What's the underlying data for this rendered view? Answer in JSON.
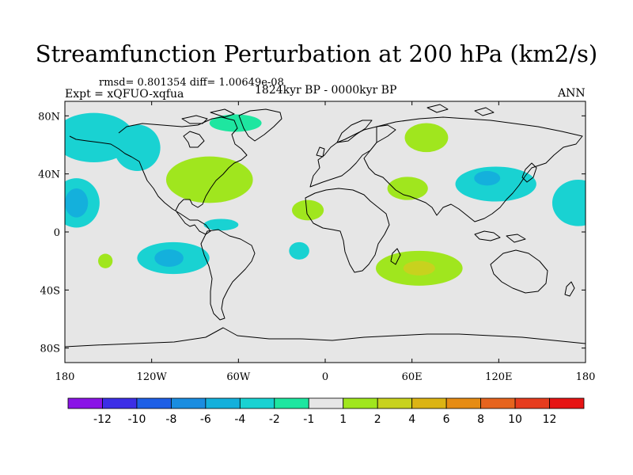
{
  "chart_data": {
    "type": "heatmap",
    "title": "Streamfunction Perturbation at 200 hPa (km2/s)",
    "stats_label": "rmsd= 0.801354 diff= 1.00649e-08",
    "left_label": "Expt = xQFUO-xqfua",
    "center_label": "1824kyr BP - 0000kyr BP",
    "right_label": "ANN",
    "x_axis": {
      "range": [
        -180,
        180
      ],
      "ticks": [
        -180,
        -120,
        -60,
        0,
        60,
        120,
        180
      ],
      "tick_labels": [
        "180",
        "120W",
        "60W",
        "0",
        "60E",
        "120E",
        "180"
      ]
    },
    "y_axis": {
      "range": [
        -90,
        90
      ],
      "ticks": [
        80,
        40,
        0,
        -40,
        -80
      ],
      "tick_labels": [
        "80N",
        "40N",
        "0",
        "40S",
        "80S"
      ]
    },
    "colorbar": {
      "labels": [
        "-12",
        "-10",
        "-8",
        "-6",
        "-4",
        "-2",
        "-1",
        "1",
        "2",
        "4",
        "6",
        "8",
        "10",
        "12"
      ],
      "colors": [
        "#8a14e6",
        "#3c2ee6",
        "#1e5fe6",
        "#1a8de0",
        "#14b0dc",
        "#19d2d2",
        "#1ee6a0",
        "#e6e6e6",
        "#a0e61e",
        "#c8d21e",
        "#dcb414",
        "#e68c14",
        "#e6641e",
        "#e63c1e",
        "#e61414"
      ]
    },
    "regions": [
      {
        "name": "north-pacific-negative",
        "lon": -160,
        "lat": 65,
        "rlon": 28,
        "rlat": 17,
        "level": "-2"
      },
      {
        "name": "north-pacific-arm",
        "lon": -130,
        "lat": 58,
        "rlon": 16,
        "rlat": 16,
        "level": "-2"
      },
      {
        "name": "east-pacific-negative",
        "lon": -172,
        "lat": 20,
        "rlon": 16,
        "rlat": 17,
        "level": "-2"
      },
      {
        "name": "east-pacific-core",
        "lon": -172,
        "lat": 20,
        "rlon": 8,
        "rlat": 10,
        "level": "-4"
      },
      {
        "name": "south-pacific-negative",
        "lon": -105,
        "lat": -18,
        "rlon": 25,
        "rlat": 11,
        "level": "-2"
      },
      {
        "name": "south-pacific-core",
        "lon": -108,
        "lat": -18,
        "rlon": 10,
        "rlat": 6,
        "level": "-4"
      },
      {
        "name": "south-pacific-small",
        "lon": -152,
        "lat": -20,
        "rlon": 5,
        "rlat": 5,
        "level": "1"
      },
      {
        "name": "north-america-positive",
        "lon": -80,
        "lat": 36,
        "rlon": 30,
        "rlat": 16,
        "level": "1"
      },
      {
        "name": "north-atlantic-high",
        "lon": -62,
        "lat": 75,
        "rlon": 18,
        "rlat": 6,
        "level": "-1"
      },
      {
        "name": "caribbean-negative",
        "lon": -72,
        "lat": 5,
        "rlon": 12,
        "rlat": 4,
        "level": "-2"
      },
      {
        "name": "tropical-atlantic-positive",
        "lon": -12,
        "lat": 15,
        "rlon": 11,
        "rlat": 7,
        "level": "1"
      },
      {
        "name": "equatorial-atlantic-negative",
        "lon": -18,
        "lat": -13,
        "rlon": 7,
        "rlat": 6,
        "level": "-2"
      },
      {
        "name": "siberia-positive",
        "lon": 70,
        "lat": 65,
        "rlon": 15,
        "rlat": 10,
        "level": "1"
      },
      {
        "name": "arabia-positive",
        "lon": 57,
        "lat": 30,
        "rlon": 14,
        "rlat": 8,
        "level": "1"
      },
      {
        "name": "east-asia-negative",
        "lon": 118,
        "lat": 33,
        "rlon": 28,
        "rlat": 12,
        "level": "-2"
      },
      {
        "name": "east-asia-core",
        "lon": 112,
        "lat": 37,
        "rlon": 9,
        "rlat": 5,
        "level": "-4"
      },
      {
        "name": "west-pacific-negative",
        "lon": 175,
        "lat": 20,
        "rlon": 18,
        "rlat": 16,
        "level": "-2"
      },
      {
        "name": "indian-ocean-positive",
        "lon": 65,
        "lat": -25,
        "rlon": 30,
        "rlat": 12,
        "level": "1"
      },
      {
        "name": "indian-ocean-core",
        "lon": 65,
        "lat": -25,
        "rlon": 11,
        "rlat": 5,
        "level": "2"
      }
    ]
  }
}
